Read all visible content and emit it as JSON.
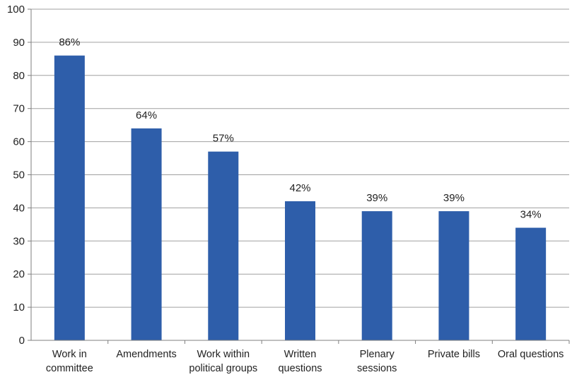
{
  "chart_data": {
    "type": "bar",
    "categories": [
      [
        "Work in",
        "committee"
      ],
      [
        "Amendments"
      ],
      [
        "Work within",
        "political groups"
      ],
      [
        "Written",
        "questions"
      ],
      [
        "Plenary",
        "sessions"
      ],
      [
        "Private bills"
      ],
      [
        "Oral questions"
      ]
    ],
    "values": [
      86,
      64,
      57,
      42,
      39,
      39,
      34
    ],
    "data_labels": [
      "86%",
      "64%",
      "57%",
      "42%",
      "39%",
      "39%",
      "34%"
    ],
    "ylim": [
      0,
      100
    ],
    "yticks": [
      "0",
      "10",
      "20",
      "30",
      "40",
      "50",
      "60",
      "70",
      "80",
      "90",
      "100"
    ],
    "title": "",
    "xlabel": "",
    "ylabel": "",
    "grid": true,
    "legend": "none",
    "colors": {
      "bar": "#2E5EAA",
      "grid": "#A0A0A0",
      "axis": "#7F7F7F"
    }
  }
}
